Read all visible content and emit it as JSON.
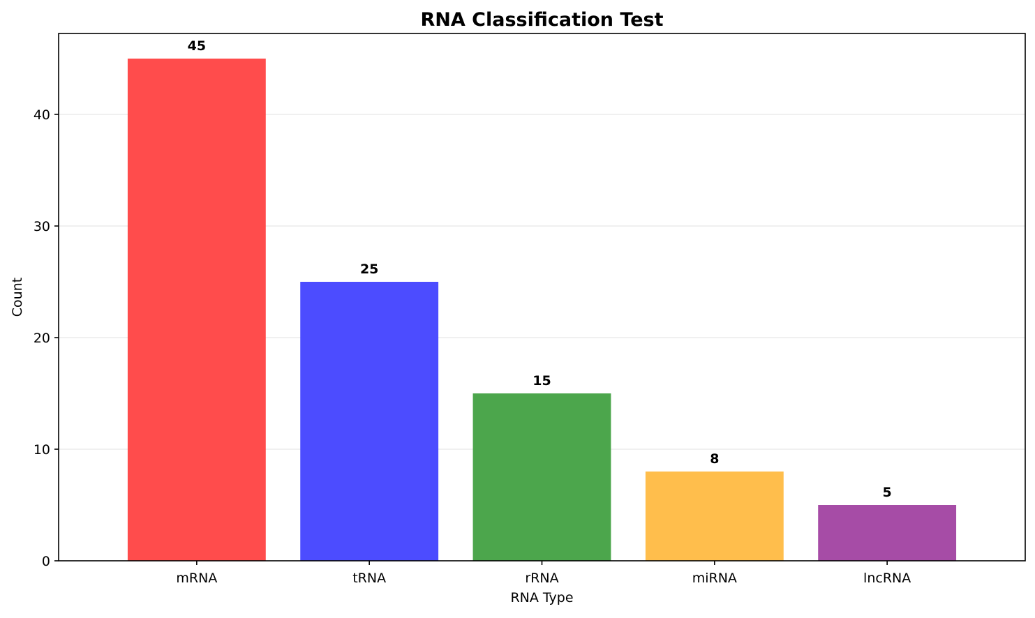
{
  "chart_data": {
    "type": "bar",
    "title": "RNA Classification Test",
    "xlabel": "RNA Type",
    "ylabel": "Count",
    "categories": [
      "mRNA",
      "tRNA",
      "rRNA",
      "miRNA",
      "lncRNA"
    ],
    "values": [
      45,
      25,
      15,
      8,
      5
    ],
    "colors": [
      "#ff4c4c",
      "#4c4cff",
      "#4ca64c",
      "#ffbe4c",
      "#a64ca6"
    ],
    "ylim": [
      0,
      47.25
    ],
    "yticks": [
      0,
      10,
      20,
      30,
      40
    ],
    "grid": "y",
    "data_labels": true
  }
}
